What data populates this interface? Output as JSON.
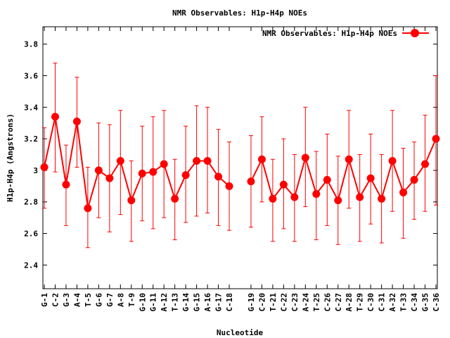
{
  "chart_data": {
    "type": "line",
    "title": "NMR Observables: H1p-H4p NOEs",
    "xlabel": "Nucleotide",
    "ylabel": "H1p-H4p (Angstrons)",
    "ylim": [
      2.25,
      3.91
    ],
    "yticks": [
      "2.4",
      "2.6",
      "2.8",
      "3",
      "3.2",
      "3.4",
      "3.6",
      "3.8"
    ],
    "grid": false,
    "legend": "top-right",
    "categories": [
      "G-1",
      "C-2",
      "G-3",
      "A-4",
      "T-5",
      "G-6",
      "G-7",
      "A-8",
      "T-9",
      "G-10",
      "G-11",
      "A-12",
      "T-13",
      "G-14",
      "G-15",
      "A-16",
      "G-17",
      "C-18",
      "G-19",
      "C-20",
      "T-21",
      "C-22",
      "C-23",
      "A-24",
      "T-25",
      "C-26",
      "C-27",
      "A-28",
      "T-29",
      "C-30",
      "C-31",
      "A-32",
      "T-33",
      "C-34",
      "G-35",
      "C-36"
    ],
    "series": [
      {
        "name": "NMR Observables: H1p-H4p NOEs",
        "color": "#ff0000",
        "values": [
          3.02,
          3.34,
          2.91,
          3.31,
          2.76,
          3.0,
          2.95,
          3.06,
          2.81,
          2.98,
          2.99,
          3.04,
          2.82,
          2.97,
          3.06,
          3.06,
          2.96,
          2.9,
          2.93,
          3.07,
          2.82,
          2.91,
          2.83,
          3.08,
          2.85,
          2.94,
          2.81,
          3.07,
          2.83,
          2.95,
          2.82,
          3.06,
          2.86,
          2.94,
          3.04,
          3.2
        ],
        "error_low": [
          2.76,
          2.99,
          2.65,
          3.02,
          2.51,
          2.7,
          2.61,
          2.72,
          2.55,
          2.68,
          2.63,
          2.7,
          2.56,
          2.67,
          2.71,
          2.73,
          2.65,
          2.62,
          2.64,
          2.8,
          2.55,
          2.63,
          2.55,
          2.77,
          2.56,
          2.65,
          2.53,
          2.76,
          2.55,
          2.66,
          2.54,
          2.74,
          2.57,
          2.69,
          2.74,
          2.78
        ],
        "error_high": [
          3.27,
          3.68,
          3.16,
          3.59,
          3.02,
          3.3,
          3.29,
          3.38,
          3.06,
          3.28,
          3.34,
          3.38,
          3.07,
          3.28,
          3.41,
          3.4,
          3.26,
          3.18,
          3.22,
          3.34,
          3.07,
          3.2,
          3.1,
          3.4,
          3.12,
          3.23,
          3.09,
          3.38,
          3.1,
          3.23,
          3.1,
          3.38,
          3.14,
          3.18,
          3.35,
          3.6
        ]
      }
    ]
  }
}
